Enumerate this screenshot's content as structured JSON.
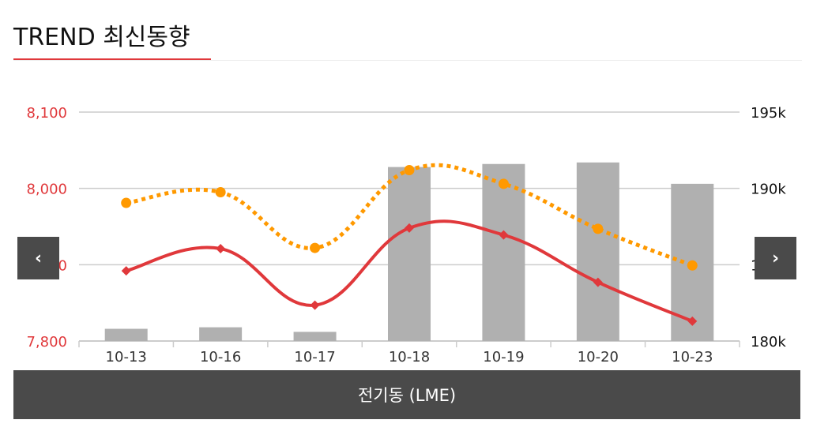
{
  "header": {
    "title": "TREND 최신동향"
  },
  "navigation": {
    "prev_glyph": "‹",
    "next_glyph": "›",
    "prev_icon": "chevron-left-icon",
    "next_icon": "chevron-right-icon"
  },
  "caption": {
    "label": "전기동 (LME)"
  },
  "colors": {
    "accent": "#e0383b",
    "line_red": "#e0383b",
    "line_orange": "#ff9900",
    "bar": "#b0b0b0",
    "left_axis_text": "#e0383b",
    "right_axis_text": "#111111",
    "grid": "#cccccc",
    "nav_bg": "#4a4a4a"
  },
  "chart_data": {
    "type": "bar",
    "categories": [
      "10-13",
      "10-16",
      "10-17",
      "10-18",
      "10-19",
      "10-20",
      "10-23"
    ],
    "y_left": {
      "ticks": [
        7800,
        7900,
        8000,
        8100
      ],
      "tick_labels": [
        "7,800",
        "7,900",
        "8,000",
        "8,100"
      ],
      "lim": [
        7800,
        8100
      ]
    },
    "y_right": {
      "ticks": [
        180000,
        185000,
        190000,
        195000
      ],
      "tick_labels": [
        "180k",
        "185k",
        "190k",
        "195k"
      ],
      "lim": [
        180000,
        195000
      ]
    },
    "series": [
      {
        "kind": "bar",
        "axis": "right",
        "values": [
          180800,
          180900,
          180600,
          191400,
          191600,
          191700,
          190300
        ]
      },
      {
        "kind": "line",
        "axis": "left",
        "style": "solid",
        "marker": "diamond",
        "values": [
          7892,
          7921,
          7847,
          7948,
          7939,
          7877,
          7826
        ]
      },
      {
        "kind": "line",
        "axis": "left",
        "style": "dotted",
        "marker": "circle",
        "values": [
          7981,
          7995,
          7922,
          8024,
          8006,
          7947,
          7899
        ]
      }
    ],
    "grid": true
  }
}
